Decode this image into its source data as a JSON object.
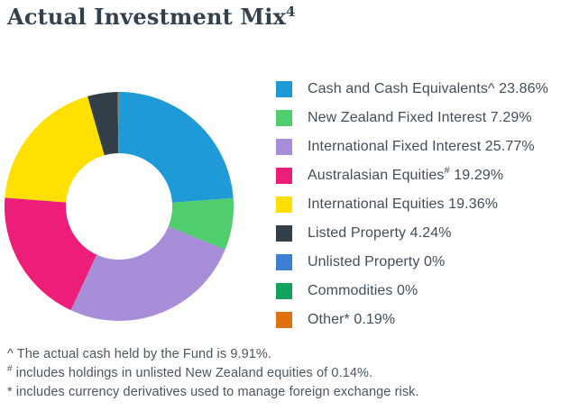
{
  "title": {
    "text": "Actual Investment Mix",
    "superscript": "4"
  },
  "chart_data": {
    "type": "pie",
    "subtype": "donut",
    "title": "Actual Investment Mix",
    "title_footnote_marker": "4",
    "start_angle": "top",
    "direction": "clockwise",
    "inner_radius_ratio": 0.465,
    "legend_position": "right",
    "value_format": "percent",
    "slices": [
      {
        "label": "Cash and Cash Equivalents",
        "marker": "^",
        "marker_superscript": false,
        "value": 23.86,
        "display_value": "23.86%",
        "color": "#1E9BD7"
      },
      {
        "label": "New Zealand Fixed Interest",
        "marker": "",
        "marker_superscript": false,
        "value": 7.29,
        "display_value": "7.29%",
        "color": "#50CE6E"
      },
      {
        "label": "International Fixed Interest",
        "marker": "",
        "marker_superscript": false,
        "value": 25.77,
        "display_value": "25.77%",
        "color": "#A88DD9"
      },
      {
        "label": "Australasian Equities",
        "marker": "#",
        "marker_superscript": true,
        "value": 19.29,
        "display_value": "19.29%",
        "color": "#EC1E79"
      },
      {
        "label": "International Equities",
        "marker": "",
        "marker_superscript": false,
        "value": 19.36,
        "display_value": "19.36%",
        "color": "#FFE000"
      },
      {
        "label": "Listed Property",
        "marker": "",
        "marker_superscript": false,
        "value": 4.24,
        "display_value": "4.24%",
        "color": "#323E48"
      },
      {
        "label": "Unlisted Property",
        "marker": "",
        "marker_superscript": false,
        "value": 0,
        "display_value": "0%",
        "color": "#3E7FD1"
      },
      {
        "label": "Commodities",
        "marker": "",
        "marker_superscript": false,
        "value": 0,
        "display_value": "0%",
        "color": "#14A35C"
      },
      {
        "label": "Other",
        "marker": "*",
        "marker_superscript": false,
        "value": 0.19,
        "display_value": "0.19%",
        "color": "#E1700E"
      }
    ]
  },
  "footnotes": [
    {
      "marker": "^",
      "marker_superscript": false,
      "text": "The actual cash held by the Fund is 9.91%."
    },
    {
      "marker": "#",
      "marker_superscript": true,
      "text": "includes holdings in unlisted New Zealand equities of 0.14%."
    },
    {
      "marker": "*",
      "marker_superscript": false,
      "text": "includes currency derivatives used to manage foreign exchange risk."
    }
  ]
}
